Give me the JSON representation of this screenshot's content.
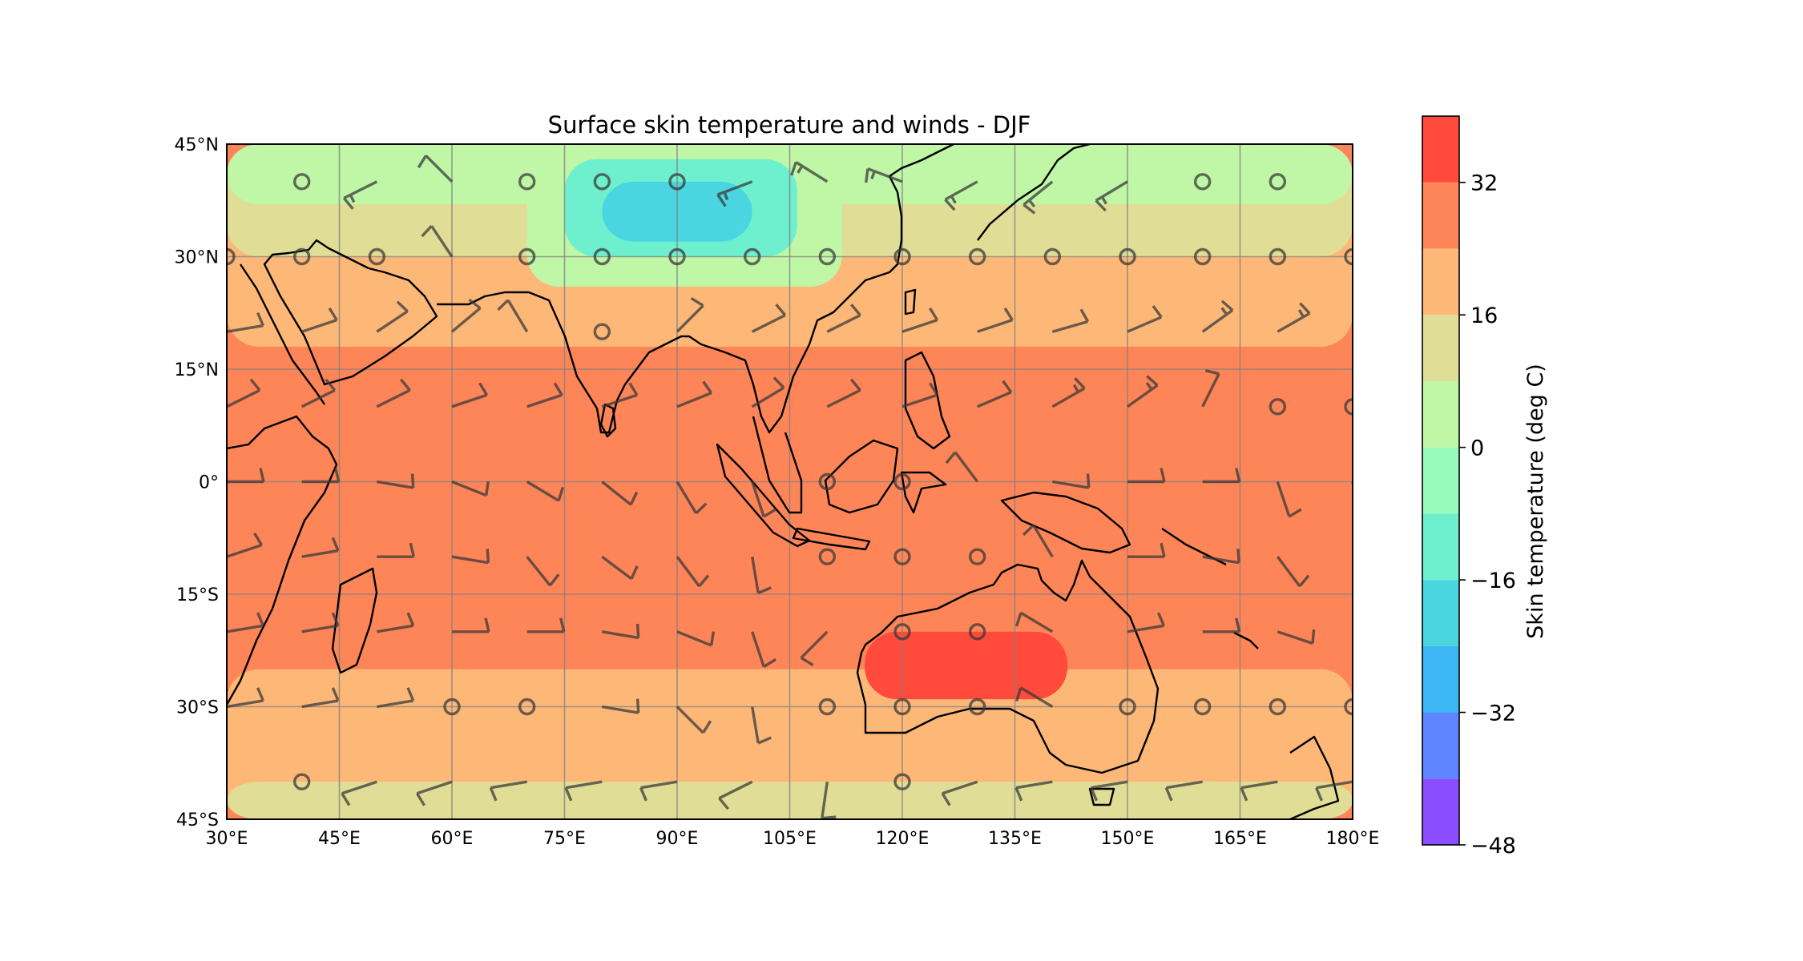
{
  "title": "Surface skin temperature and winds - DJF",
  "colorbar": {
    "label": "Skin temperature (deg C)",
    "tick_labels": [
      "−48",
      "−32",
      "−16",
      "0",
      "16",
      "32"
    ],
    "tick_values": [
      -48,
      -32,
      -16,
      0,
      16,
      32
    ],
    "levels": [
      -48,
      -40,
      -32,
      -24,
      -16,
      -8,
      0,
      8,
      16,
      24,
      32,
      40
    ],
    "colors": [
      "#8a4dff",
      "#5e85ff",
      "#3cb6f5",
      "#49d6e0",
      "#6ef0cf",
      "#97fbbb",
      "#bff7a6",
      "#e0dd96",
      "#fdb878",
      "#fe8558",
      "#ff4a3c"
    ]
  },
  "map": {
    "projection": "PlateCarree",
    "lon_range": [
      30,
      180
    ],
    "lat_range": [
      -45,
      45
    ],
    "x_tick_labels": [
      "30°E",
      "45°E",
      "60°E",
      "75°E",
      "90°E",
      "105°E",
      "120°E",
      "135°E",
      "150°E",
      "165°E",
      "180°E"
    ],
    "y_tick_labels": [
      "45°N",
      "30°N",
      "15°N",
      "0°",
      "15°S",
      "30°S",
      "45°S"
    ],
    "gridlines": true
  },
  "chart_data": {
    "type": "heatmap",
    "title": "Surface skin temperature and winds - DJF",
    "variable": "Skin temperature (deg C)",
    "xlim": [
      30,
      180
    ],
    "ylim": [
      -45,
      45
    ],
    "colorbar_range": [
      -48,
      40
    ],
    "regions": [
      {
        "lon": [
          30,
          180
        ],
        "lat": [
          -45,
          45
        ],
        "value": 28
      },
      {
        "lon": [
          30,
          180
        ],
        "lat": [
          -45,
          -25
        ],
        "value": 20
      },
      {
        "lon": [
          30,
          180
        ],
        "lat": [
          -45,
          -40
        ],
        "value": 12
      },
      {
        "lon": [
          30,
          180
        ],
        "lat": [
          18,
          45
        ],
        "value": 20
      },
      {
        "lon": [
          30,
          180
        ],
        "lat": [
          30,
          45
        ],
        "value": 12
      },
      {
        "lon": [
          30,
          180
        ],
        "lat": [
          37,
          45
        ],
        "value": 4
      },
      {
        "lon": [
          70,
          112
        ],
        "lat": [
          26,
          45
        ],
        "value": 4
      },
      {
        "lon": [
          75,
          106
        ],
        "lat": [
          30,
          43
        ],
        "value": -12
      },
      {
        "lon": [
          80,
          100
        ],
        "lat": [
          32,
          40
        ],
        "value": -20
      },
      {
        "lon": [
          115,
          142
        ],
        "lat": [
          -29,
          -20
        ],
        "value": 36
      }
    ],
    "wind_barbs": [
      {
        "lon": 40,
        "lat": 40,
        "u": 0,
        "v": 0
      },
      {
        "lon": 50,
        "lat": 40,
        "u": 8,
        "v": 4
      },
      {
        "lon": 60,
        "lat": 40,
        "u": 5,
        "v": -5
      },
      {
        "lon": 70,
        "lat": 40,
        "u": 0,
        "v": 0
      },
      {
        "lon": 80,
        "lat": 40,
        "u": 0,
        "v": 0
      },
      {
        "lon": 90,
        "lat": 40,
        "u": 0,
        "v": 0
      },
      {
        "lon": 100,
        "lat": 40,
        "u": 8,
        "v": 3
      },
      {
        "lon": 110,
        "lat": 40,
        "u": 8,
        "v": -5
      },
      {
        "lon": 120,
        "lat": 40,
        "u": 8,
        "v": -3
      },
      {
        "lon": 130,
        "lat": 40,
        "u": 9,
        "v": 5
      },
      {
        "lon": 140,
        "lat": 40,
        "u": 10,
        "v": 8
      },
      {
        "lon": 150,
        "lat": 40,
        "u": 10,
        "v": 6
      },
      {
        "lon": 160,
        "lat": 40,
        "u": 0,
        "v": 0
      },
      {
        "lon": 170,
        "lat": 40,
        "u": 0,
        "v": 0
      },
      {
        "lon": 30,
        "lat": 30,
        "u": 0,
        "v": 0
      },
      {
        "lon": 40,
        "lat": 30,
        "u": 0,
        "v": 0
      },
      {
        "lon": 50,
        "lat": 30,
        "u": 0,
        "v": 0
      },
      {
        "lon": 60,
        "lat": 30,
        "u": 4,
        "v": -6
      },
      {
        "lon": 70,
        "lat": 30,
        "u": 0,
        "v": 0
      },
      {
        "lon": 80,
        "lat": 30,
        "u": 0,
        "v": 0
      },
      {
        "lon": 90,
        "lat": 30,
        "u": 0,
        "v": 0
      },
      {
        "lon": 100,
        "lat": 30,
        "u": 0,
        "v": 0
      },
      {
        "lon": 110,
        "lat": 30,
        "u": 0,
        "v": 0
      },
      {
        "lon": 120,
        "lat": 30,
        "u": 0,
        "v": 0
      },
      {
        "lon": 130,
        "lat": 30,
        "u": 0,
        "v": 0
      },
      {
        "lon": 140,
        "lat": 30,
        "u": 0,
        "v": 0
      },
      {
        "lon": 150,
        "lat": 30,
        "u": 0,
        "v": 0
      },
      {
        "lon": 160,
        "lat": 30,
        "u": 0,
        "v": 0
      },
      {
        "lon": 170,
        "lat": 30,
        "u": 0,
        "v": 0
      },
      {
        "lon": 180,
        "lat": 30,
        "u": 0,
        "v": 0
      },
      {
        "lon": 30,
        "lat": 20,
        "u": -6,
        "v": -1
      },
      {
        "lon": 40,
        "lat": 20,
        "u": -6,
        "v": -2
      },
      {
        "lon": 50,
        "lat": 20,
        "u": -6,
        "v": -4
      },
      {
        "lon": 60,
        "lat": 20,
        "u": -6,
        "v": -5
      },
      {
        "lon": 70,
        "lat": 20,
        "u": 3,
        "v": -5
      },
      {
        "lon": 80,
        "lat": 20,
        "u": 0,
        "v": 0
      },
      {
        "lon": 90,
        "lat": 20,
        "u": -4,
        "v": -4
      },
      {
        "lon": 100,
        "lat": 20,
        "u": -6,
        "v": -3
      },
      {
        "lon": 110,
        "lat": 20,
        "u": -6,
        "v": -3
      },
      {
        "lon": 120,
        "lat": 20,
        "u": -6,
        "v": -2
      },
      {
        "lon": 130,
        "lat": 20,
        "u": -6,
        "v": -2
      },
      {
        "lon": 140,
        "lat": 20,
        "u": -7,
        "v": -2
      },
      {
        "lon": 150,
        "lat": 20,
        "u": -7,
        "v": -3
      },
      {
        "lon": 160,
        "lat": 20,
        "u": -7,
        "v": -5
      },
      {
        "lon": 170,
        "lat": 20,
        "u": -7,
        "v": -4
      },
      {
        "lon": 30,
        "lat": 10,
        "u": -6,
        "v": -3
      },
      {
        "lon": 40,
        "lat": 10,
        "u": -6,
        "v": -3
      },
      {
        "lon": 50,
        "lat": 10,
        "u": -6,
        "v": -3
      },
      {
        "lon": 60,
        "lat": 10,
        "u": -6,
        "v": -2
      },
      {
        "lon": 70,
        "lat": 10,
        "u": -6,
        "v": -2
      },
      {
        "lon": 80,
        "lat": 10,
        "u": -6,
        "v": -2
      },
      {
        "lon": 90,
        "lat": 10,
        "u": -5,
        "v": -2
      },
      {
        "lon": 100,
        "lat": 10,
        "u": -5,
        "v": -3
      },
      {
        "lon": 110,
        "lat": 10,
        "u": -6,
        "v": -3
      },
      {
        "lon": 120,
        "lat": 10,
        "u": -6,
        "v": -2
      },
      {
        "lon": 130,
        "lat": 10,
        "u": -7,
        "v": -3
      },
      {
        "lon": 140,
        "lat": 10,
        "u": -7,
        "v": -4
      },
      {
        "lon": 150,
        "lat": 10,
        "u": -7,
        "v": -5
      },
      {
        "lon": 160,
        "lat": 10,
        "u": -3,
        "v": -6
      },
      {
        "lon": 170,
        "lat": 10,
        "u": 0,
        "v": 0
      },
      {
        "lon": 180,
        "lat": 10,
        "u": 0,
        "v": 0
      },
      {
        "lon": 30,
        "lat": 0,
        "u": -6,
        "v": 0
      },
      {
        "lon": 40,
        "lat": 0,
        "u": -6,
        "v": 0
      },
      {
        "lon": 50,
        "lat": 0,
        "u": -6,
        "v": 1
      },
      {
        "lon": 60,
        "lat": 0,
        "u": -5,
        "v": 2
      },
      {
        "lon": 70,
        "lat": 0,
        "u": -5,
        "v": 3
      },
      {
        "lon": 80,
        "lat": 0,
        "u": -5,
        "v": 4
      },
      {
        "lon": 90,
        "lat": 0,
        "u": -3,
        "v": 5
      },
      {
        "lon": 100,
        "lat": 0,
        "u": -2,
        "v": 6
      },
      {
        "lon": 110,
        "lat": 0,
        "u": 0,
        "v": 0
      },
      {
        "lon": 120,
        "lat": 0,
        "u": 0,
        "v": 0
      },
      {
        "lon": 130,
        "lat": 0,
        "u": 3,
        "v": -4
      },
      {
        "lon": 140,
        "lat": 0,
        "u": -6,
        "v": 1
      },
      {
        "lon": 150,
        "lat": 0,
        "u": -6,
        "v": 0
      },
      {
        "lon": 160,
        "lat": 0,
        "u": -6,
        "v": 0
      },
      {
        "lon": 170,
        "lat": 0,
        "u": -2,
        "v": 6
      },
      {
        "lon": 180,
        "lat": 0,
        "u": -1,
        "v": 6
      },
      {
        "lon": 30,
        "lat": -10,
        "u": -6,
        "v": -2
      },
      {
        "lon": 40,
        "lat": -10,
        "u": -6,
        "v": -1
      },
      {
        "lon": 50,
        "lat": -10,
        "u": -6,
        "v": 0
      },
      {
        "lon": 60,
        "lat": -10,
        "u": -6,
        "v": 1
      },
      {
        "lon": 70,
        "lat": -10,
        "u": -4,
        "v": 5
      },
      {
        "lon": 80,
        "lat": -10,
        "u": -4,
        "v": 3
      },
      {
        "lon": 90,
        "lat": -10,
        "u": -3,
        "v": 4
      },
      {
        "lon": 100,
        "lat": -10,
        "u": -1,
        "v": 6
      },
      {
        "lon": 110,
        "lat": -10,
        "u": 0,
        "v": 0
      },
      {
        "lon": 120,
        "lat": -10,
        "u": 0,
        "v": 0
      },
      {
        "lon": 130,
        "lat": -10,
        "u": 0,
        "v": 0
      },
      {
        "lon": 140,
        "lat": -10,
        "u": 3,
        "v": -5
      },
      {
        "lon": 150,
        "lat": -10,
        "u": -6,
        "v": 0
      },
      {
        "lon": 160,
        "lat": -10,
        "u": -6,
        "v": 1
      },
      {
        "lon": 170,
        "lat": -10,
        "u": -3,
        "v": 4
      },
      {
        "lon": 30,
        "lat": -20,
        "u": -6,
        "v": -1
      },
      {
        "lon": 40,
        "lat": -20,
        "u": -6,
        "v": -1
      },
      {
        "lon": 50,
        "lat": -20,
        "u": -6,
        "v": -1
      },
      {
        "lon": 60,
        "lat": -20,
        "u": -6,
        "v": 0
      },
      {
        "lon": 70,
        "lat": -20,
        "u": -6,
        "v": 0
      },
      {
        "lon": 80,
        "lat": -20,
        "u": -6,
        "v": 1
      },
      {
        "lon": 90,
        "lat": -20,
        "u": -5,
        "v": 2
      },
      {
        "lon": 100,
        "lat": -20,
        "u": -2,
        "v": 6
      },
      {
        "lon": 110,
        "lat": -20,
        "u": 4,
        "v": 4
      },
      {
        "lon": 120,
        "lat": -20,
        "u": 0,
        "v": 0
      },
      {
        "lon": 130,
        "lat": -20,
        "u": 0,
        "v": 0
      },
      {
        "lon": 140,
        "lat": -20,
        "u": 5,
        "v": -3
      },
      {
        "lon": 150,
        "lat": -20,
        "u": -6,
        "v": -1
      },
      {
        "lon": 160,
        "lat": -20,
        "u": -6,
        "v": 0
      },
      {
        "lon": 170,
        "lat": -20,
        "u": -6,
        "v": 2
      },
      {
        "lon": 180,
        "lat": -20,
        "u": -6,
        "v": 1
      },
      {
        "lon": 30,
        "lat": -30,
        "u": -6,
        "v": -1
      },
      {
        "lon": 40,
        "lat": -30,
        "u": -6,
        "v": -1
      },
      {
        "lon": 50,
        "lat": -30,
        "u": -6,
        "v": -1
      },
      {
        "lon": 60,
        "lat": -30,
        "u": 0,
        "v": 0
      },
      {
        "lon": 70,
        "lat": -30,
        "u": 0,
        "v": 0
      },
      {
        "lon": 80,
        "lat": -30,
        "u": -6,
        "v": 1
      },
      {
        "lon": 90,
        "lat": -30,
        "u": -4,
        "v": 4
      },
      {
        "lon": 100,
        "lat": -30,
        "u": -1,
        "v": 6
      },
      {
        "lon": 110,
        "lat": -30,
        "u": 0,
        "v": 0
      },
      {
        "lon": 120,
        "lat": -30,
        "u": 0,
        "v": 0
      },
      {
        "lon": 130,
        "lat": -30,
        "u": 0,
        "v": 0
      },
      {
        "lon": 140,
        "lat": -30,
        "u": 5,
        "v": -3
      },
      {
        "lon": 150,
        "lat": -30,
        "u": 0,
        "v": 0
      },
      {
        "lon": 160,
        "lat": -30,
        "u": 0,
        "v": 0
      },
      {
        "lon": 170,
        "lat": -30,
        "u": 0,
        "v": 0
      },
      {
        "lon": 180,
        "lat": -30,
        "u": 0,
        "v": 0
      },
      {
        "lon": 40,
        "lat": -40,
        "u": 0,
        "v": 0
      },
      {
        "lon": 50,
        "lat": -40,
        "u": 6,
        "v": 2
      },
      {
        "lon": 60,
        "lat": -40,
        "u": 6,
        "v": 2
      },
      {
        "lon": 70,
        "lat": -40,
        "u": 6,
        "v": 1
      },
      {
        "lon": 80,
        "lat": -40,
        "u": 6,
        "v": 1
      },
      {
        "lon": 90,
        "lat": -40,
        "u": 6,
        "v": 1
      },
      {
        "lon": 100,
        "lat": -40,
        "u": 6,
        "v": 3
      },
      {
        "lon": 110,
        "lat": -40,
        "u": 1,
        "v": 7
      },
      {
        "lon": 120,
        "lat": -40,
        "u": 0,
        "v": 0
      },
      {
        "lon": 130,
        "lat": -40,
        "u": 6,
        "v": 2
      },
      {
        "lon": 140,
        "lat": -40,
        "u": 6,
        "v": 1
      },
      {
        "lon": 150,
        "lat": -40,
        "u": 6,
        "v": 1
      },
      {
        "lon": 160,
        "lat": -40,
        "u": 6,
        "v": 1
      },
      {
        "lon": 170,
        "lat": -40,
        "u": 6,
        "v": 1
      },
      {
        "lon": 180,
        "lat": -40,
        "u": 6,
        "v": 1
      }
    ]
  }
}
